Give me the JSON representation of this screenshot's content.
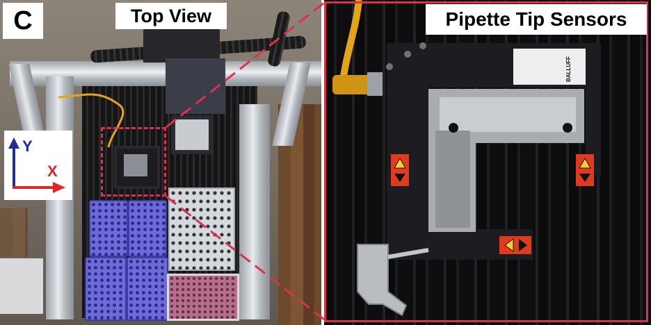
{
  "panel_letter": "C",
  "left_panel": {
    "title": "Top View",
    "axes": {
      "y_label": "Y",
      "x_label": "X",
      "y_color": "#1f2f8f",
      "x_color": "#e0242c"
    }
  },
  "right_panel": {
    "title": "Pipette Tip Sensors",
    "sensor_brand_mark": "BALLUFF"
  },
  "colors": {
    "highlight": "#d8334a",
    "tip_rack": "#6f6ad9",
    "well_plate": "#b56f8c",
    "sensor_body": "#1d1d21",
    "warning_label": "#e03a1f",
    "cable": "#e2a51a"
  }
}
